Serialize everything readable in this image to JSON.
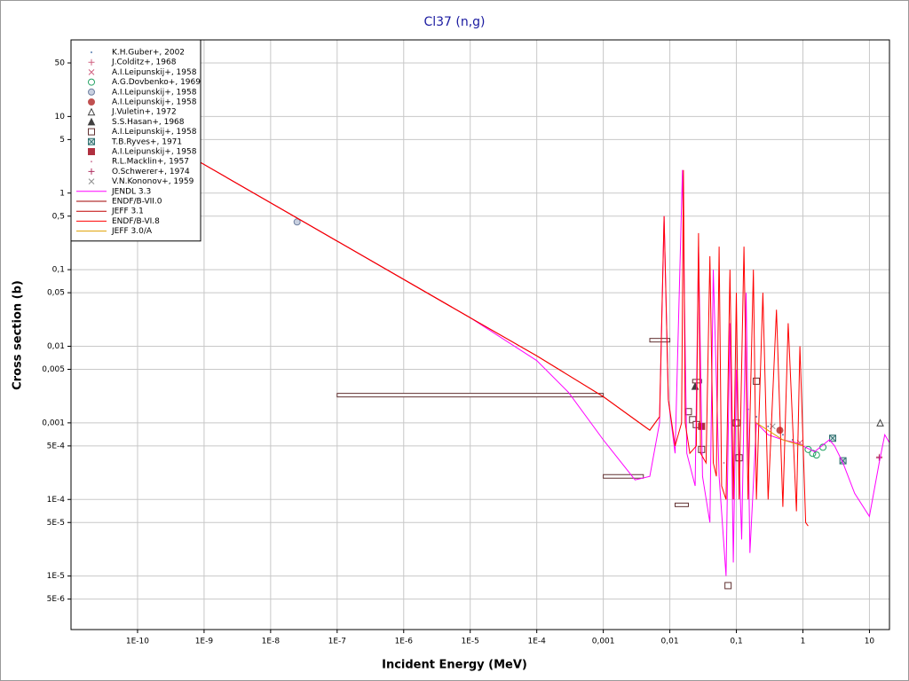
{
  "chart_data": {
    "type": "line",
    "title": "Cl37 (n,g)",
    "x_label": "Incident Energy (MeV)",
    "y_label": "Cross section (b)",
    "xscale": "log",
    "yscale": "log",
    "grid": true,
    "legend": "upper left",
    "xlim": [
      1e-11,
      20
    ],
    "ylim": [
      2e-06,
      100
    ],
    "xticks": [
      {
        "value": 1e-10,
        "label": "1E-10"
      },
      {
        "value": 1e-09,
        "label": "1E-9"
      },
      {
        "value": 1e-08,
        "label": "1E-8"
      },
      {
        "value": 1e-07,
        "label": "1E-7"
      },
      {
        "value": 1e-06,
        "label": "1E-6"
      },
      {
        "value": 1e-05,
        "label": "1E-5"
      },
      {
        "value": 0.0001,
        "label": "1E-4"
      },
      {
        "value": 0.001,
        "label": "0,001"
      },
      {
        "value": 0.01,
        "label": "0,01"
      },
      {
        "value": 0.1,
        "label": "0,1"
      },
      1,
      10
    ],
    "yticks": [
      50,
      10,
      5,
      1,
      {
        "value": 0.5,
        "label": "0,5"
      },
      {
        "value": 0.1,
        "label": "0,1"
      },
      {
        "value": 0.05,
        "label": "0,05"
      },
      {
        "value": 0.01,
        "label": "0,01"
      },
      {
        "value": 0.005,
        "label": "0,005"
      },
      {
        "value": 0.001,
        "label": "0,001"
      },
      {
        "value": 0.0005,
        "label": "5E-4"
      },
      {
        "value": 0.0001,
        "label": "1E-4"
      },
      {
        "value": 5e-05,
        "label": "5E-5"
      },
      {
        "value": 1e-05,
        "label": "1E-5"
      },
      {
        "value": 5e-06,
        "label": "5E-6"
      }
    ],
    "series": [
      {
        "name": "K.H.Guber+, 2002",
        "color": "#5a7fb0",
        "marker": "dot",
        "x": [
          0.15,
          0.2,
          0.3,
          0.5,
          0.7
        ],
        "values": [
          0.0015,
          0.0012,
          0.0009,
          0.0007,
          0.0006
        ]
      },
      {
        "name": "J.Colditz+, 1968",
        "color": "#d06080",
        "marker": "plus",
        "x": [
          14.1
        ],
        "values": [
          0.00036
        ]
      },
      {
        "name": "A.I.Leipunskij+, 1958",
        "color": "#d06080",
        "marker": "x",
        "x": [
          0.9
        ],
        "values": [
          0.00055
        ]
      },
      {
        "name": "A.G.Dovbenko+, 1969",
        "color": "#20a060",
        "marker": "circle",
        "x": [
          1.2,
          1.4,
          1.6,
          2.0
        ],
        "values": [
          0.00045,
          0.0004,
          0.00038,
          0.00048
        ]
      },
      {
        "name": "A.I.Leipunskij+, 1958",
        "color": "#7080a0",
        "marker": "circle-pattern",
        "x": [
          2.5e-08
        ],
        "values": [
          0.42
        ]
      },
      {
        "name": "A.I.Leipunskij+, 1958",
        "color": "#c05050",
        "marker": "circle-filled",
        "x": [
          0.45
        ],
        "values": [
          0.0008
        ]
      },
      {
        "name": "J.Vuletin+, 1972",
        "color": "#404040",
        "marker": "triangle",
        "x": [
          14.5
        ],
        "values": [
          0.001
        ]
      },
      {
        "name": "S.S.Hasan+, 1968",
        "color": "#404040",
        "marker": "triangle-filled",
        "x": [
          0.024
        ],
        "values": [
          0.003
        ]
      },
      {
        "name": "A.I.Leipunskij+, 1958",
        "color": "#603030",
        "marker": "square",
        "x": [
          3e-05,
          0.0071,
          0.0024,
          0.0145,
          0.026,
          0.019,
          0.022,
          0.025,
          0.03,
          0.075,
          0.1,
          0.11,
          0.2
        ],
        "x_range": [
          [
            1e-07,
            0.001
          ],
          [
            0.005,
            0.01
          ],
          [
            0.001,
            0.004
          ],
          [
            0.012,
            0.019
          ],
          [
            0.022,
            0.03
          ],
          [
            0.018,
            0.02
          ],
          [
            0.021,
            0.023
          ],
          [
            0.024,
            0.026
          ],
          [
            0.028,
            0.032
          ],
          [
            0.072,
            0.078
          ],
          [
            0.095,
            0.105
          ],
          [
            0.1,
            0.12
          ],
          [
            0.19,
            0.21
          ]
        ],
        "values": [
          0.0023,
          0.012,
          0.0002,
          8.5e-05,
          0.0035,
          0.0014,
          0.0011,
          0.00095,
          0.00045,
          7.5e-06,
          0.001,
          0.00035,
          0.0035
        ]
      },
      {
        "name": "T.B.Ryves+, 1971",
        "color": "#307070",
        "marker": "square-x",
        "x": [
          2.8,
          4.0
        ],
        "values": [
          0.00063,
          0.00032
        ]
      },
      {
        "name": "A.I.Leipunskij+, 1958",
        "color": "#b03040",
        "marker": "square-filled",
        "x": [
          0.03
        ],
        "values": [
          0.0009
        ]
      },
      {
        "name": "R.L.Macklin+, 1957",
        "color": "#d080a0",
        "marker": "dot",
        "x": [
          0.03,
          0.065
        ],
        "values": [
          0.0004,
          0.0003
        ]
      },
      {
        "name": "O.Schwerer+, 1974",
        "color": "#b03060",
        "marker": "plus",
        "x": [
          14.0
        ],
        "values": [
          0.00035
        ]
      },
      {
        "name": "V.N.Kononov+, 1959",
        "color": "#909090",
        "marker": "x",
        "x": [
          0.35
        ],
        "values": [
          0.0009
        ]
      },
      {
        "name": "JENDL 3.3",
        "color": "#ff00ff",
        "marker": "line",
        "x": [
          1e-11,
          1e-09,
          1e-07,
          1e-05,
          0.0001,
          0.0003,
          0.001,
          0.003,
          0.005,
          0.007,
          0.0082,
          0.0095,
          0.012,
          0.0155,
          0.018,
          0.024,
          0.027,
          0.031,
          0.04,
          0.045,
          0.055,
          0.07,
          0.08,
          0.09,
          0.1,
          0.12,
          0.14,
          0.16,
          0.2,
          0.3,
          0.5,
          0.8,
          1,
          1.5,
          2.5,
          3,
          4,
          6,
          10,
          14,
          17,
          20
        ],
        "values": [
          23.6,
          2.36,
          0.236,
          0.0236,
          0.0065,
          0.0025,
          0.0006,
          0.00018,
          0.0002,
          0.001,
          0.5,
          0.002,
          0.0004,
          2.0,
          0.0004,
          0.00015,
          0.2,
          0.0002,
          5e-05,
          0.1,
          0.0002,
          1e-05,
          0.02,
          1.5e-05,
          0.005,
          3e-05,
          0.05,
          2e-05,
          0.001,
          0.0007,
          0.0006,
          0.00055,
          0.0005,
          0.00042,
          0.0006,
          0.0005,
          0.0003,
          0.00012,
          6e-05,
          0.0003,
          0.0007,
          0.00055
        ]
      },
      {
        "name": "ENDF/B-VII.0",
        "color": "#a00000",
        "marker": "line",
        "x": [
          1e-11,
          1e-09,
          1e-07,
          1e-05,
          0.0001,
          0.001,
          0.005,
          0.007
        ],
        "values": [
          23.6,
          2.36,
          0.236,
          0.0236,
          0.0075,
          0.0022,
          0.0008,
          0.0012
        ]
      },
      {
        "name": "JEFF 3.1",
        "color": "#c00000",
        "marker": "line",
        "x": [
          1e-11,
          1e-09,
          1e-07,
          1e-05
        ],
        "values": [
          23.6,
          2.36,
          0.236,
          0.0236
        ]
      },
      {
        "name": "ENDF/B-VI.8",
        "color": "#ff0000",
        "marker": "line",
        "x": [
          1e-11,
          1e-09,
          1e-07,
          1e-05,
          0.0001,
          0.001,
          0.003,
          0.005,
          0.007,
          0.0082,
          0.0095,
          0.012,
          0.015,
          0.016,
          0.017,
          0.02,
          0.025,
          0.027,
          0.029,
          0.035,
          0.04,
          0.045,
          0.05,
          0.055,
          0.06,
          0.07,
          0.08,
          0.09,
          0.1,
          0.11,
          0.13,
          0.15,
          0.18,
          0.2,
          0.25,
          0.3,
          0.4,
          0.5,
          0.6,
          0.8,
          0.9,
          1.1,
          1.2
        ],
        "values": [
          23.6,
          2.36,
          0.236,
          0.0236,
          0.0075,
          0.0022,
          0.0011,
          0.0008,
          0.0012,
          0.5,
          0.002,
          0.0005,
          0.001,
          2.0,
          0.001,
          0.0004,
          0.0005,
          0.3,
          0.0004,
          0.0003,
          0.15,
          0.0003,
          0.0002,
          0.2,
          0.00015,
          0.0001,
          0.1,
          0.0001,
          0.05,
          0.0001,
          0.2,
          0.0001,
          0.1,
          0.0001,
          0.05,
          0.0001,
          0.03,
          8e-05,
          0.02,
          7e-05,
          0.01,
          5e-05,
          4.5e-05
        ]
      },
      {
        "name": "JEFF 3.0/A",
        "color": "#e0a000",
        "marker": "line",
        "x": [
          0.2,
          0.5,
          1
        ],
        "values": [
          0.001,
          0.0006,
          0.0005
        ]
      }
    ]
  }
}
